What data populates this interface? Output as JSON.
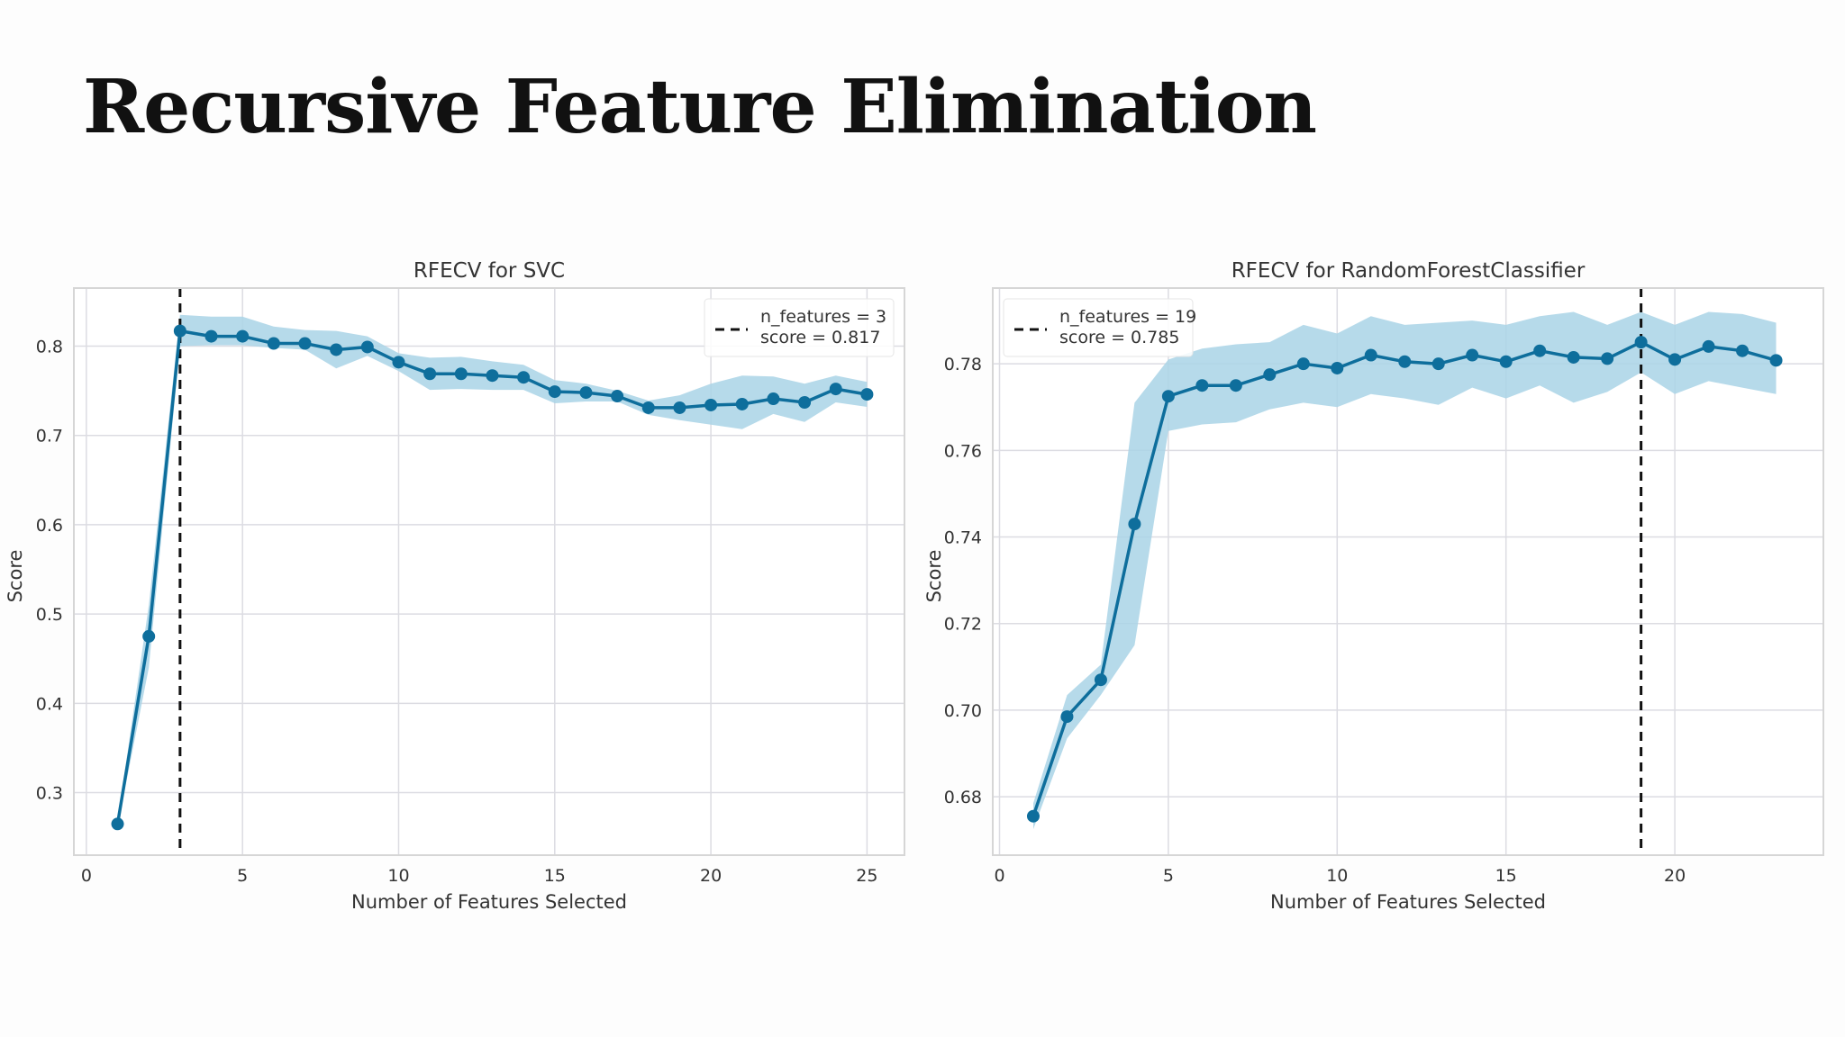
{
  "page": {
    "title": "Recursive Feature Elimination"
  },
  "chart_data": [
    {
      "type": "line",
      "title": "RFECV for SVC",
      "xlabel": "Number of Features Selected",
      "ylabel": "Score",
      "xlim": [
        -0.4,
        26.2
      ],
      "ylim": [
        0.23,
        0.865
      ],
      "xticks": [
        0,
        5,
        10,
        15,
        20,
        25
      ],
      "yticks": [
        0.3,
        0.4,
        0.5,
        0.6,
        0.7,
        0.8
      ],
      "ytick_labels": [
        "0.3",
        "0.4",
        "0.5",
        "0.6",
        "0.7",
        "0.8"
      ],
      "grid": true,
      "legend_position": "top-right",
      "line_color": "#0e6e9c",
      "band_color": "#a9d3e6",
      "series": [
        {
          "x": [
            1,
            2,
            3,
            4,
            5,
            6,
            7,
            8,
            9,
            10,
            11,
            12,
            13,
            14,
            15,
            16,
            17,
            18,
            19,
            20,
            21,
            22,
            23,
            24,
            25
          ],
          "values": [
            0.265,
            0.475,
            0.817,
            0.811,
            0.811,
            0.803,
            0.803,
            0.796,
            0.799,
            0.782,
            0.769,
            0.769,
            0.767,
            0.765,
            0.749,
            0.748,
            0.744,
            0.731,
            0.731,
            0.734,
            0.735,
            0.741,
            0.737,
            0.752,
            0.746
          ],
          "upper": [
            0.268,
            0.51,
            0.835,
            0.833,
            0.833,
            0.822,
            0.818,
            0.817,
            0.811,
            0.792,
            0.787,
            0.788,
            0.783,
            0.779,
            0.762,
            0.758,
            0.75,
            0.739,
            0.745,
            0.758,
            0.767,
            0.766,
            0.758,
            0.767,
            0.76
          ],
          "lower": [
            0.262,
            0.44,
            0.8,
            0.801,
            0.801,
            0.798,
            0.796,
            0.775,
            0.789,
            0.772,
            0.751,
            0.752,
            0.751,
            0.751,
            0.736,
            0.738,
            0.738,
            0.723,
            0.717,
            0.712,
            0.707,
            0.724,
            0.715,
            0.737,
            0.732
          ]
        }
      ],
      "optimal": {
        "x": 3,
        "legend_line1": "n_features = 3",
        "legend_line2": "score = 0.817"
      }
    },
    {
      "type": "line",
      "title": "RFECV for RandomForestClassifier",
      "xlabel": "Number of Features Selected",
      "ylabel": "Score",
      "xlim": [
        -0.2,
        24.4
      ],
      "ylim": [
        0.6665,
        0.7975
      ],
      "xticks": [
        0,
        5,
        10,
        15,
        20
      ],
      "yticks": [
        0.68,
        0.7,
        0.72,
        0.74,
        0.76,
        0.78
      ],
      "ytick_labels": [
        "0.68",
        "0.70",
        "0.72",
        "0.74",
        "0.76",
        "0.78"
      ],
      "grid": true,
      "legend_position": "top-left",
      "line_color": "#0e6e9c",
      "band_color": "#a9d3e6",
      "series": [
        {
          "x": [
            1,
            2,
            3,
            4,
            5,
            6,
            7,
            8,
            9,
            10,
            11,
            12,
            13,
            14,
            15,
            16,
            17,
            18,
            19,
            20,
            21,
            22,
            23
          ],
          "values": [
            0.6755,
            0.6985,
            0.707,
            0.743,
            0.7725,
            0.775,
            0.775,
            0.7775,
            0.78,
            0.779,
            0.782,
            0.7805,
            0.78,
            0.782,
            0.7805,
            0.783,
            0.7815,
            0.7812,
            0.785,
            0.781,
            0.784,
            0.783,
            0.7808
          ],
          "upper": [
            0.6785,
            0.7035,
            0.7105,
            0.771,
            0.781,
            0.7835,
            0.7845,
            0.785,
            0.789,
            0.787,
            0.791,
            0.789,
            0.7895,
            0.79,
            0.789,
            0.791,
            0.792,
            0.789,
            0.792,
            0.789,
            0.792,
            0.7915,
            0.7895
          ],
          "lower": [
            0.6725,
            0.6935,
            0.7035,
            0.715,
            0.7645,
            0.766,
            0.7665,
            0.7695,
            0.771,
            0.77,
            0.773,
            0.772,
            0.7705,
            0.7745,
            0.772,
            0.775,
            0.771,
            0.7735,
            0.778,
            0.773,
            0.776,
            0.7745,
            0.773
          ]
        }
      ],
      "optimal": {
        "x": 19,
        "legend_line1": "n_features = 19",
        "legend_line2": "score = 0.785"
      }
    }
  ]
}
